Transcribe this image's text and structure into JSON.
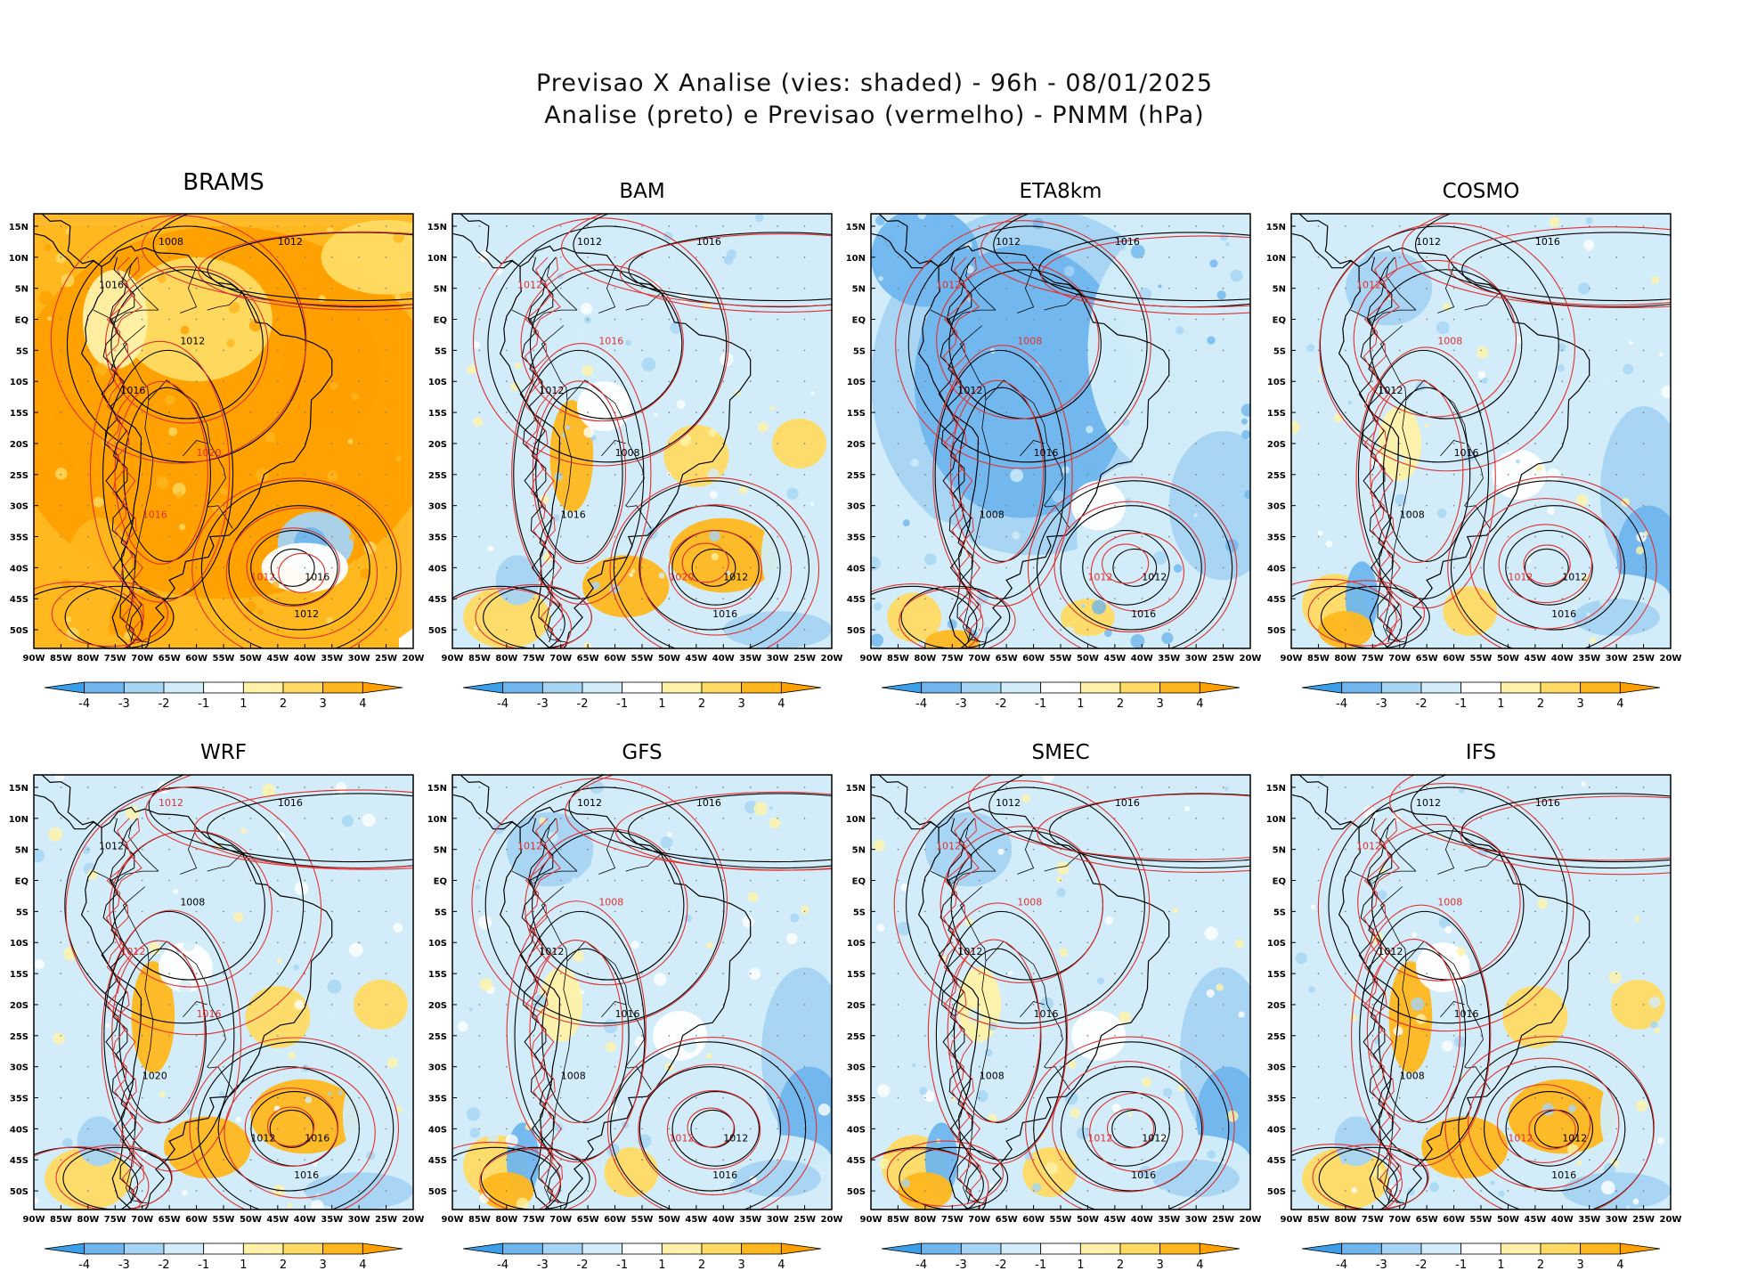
{
  "figure": {
    "title_line1": "Previsao X Analise (vies: shaded) - 96h - 08/01/2025",
    "title_line2": "Analise (preto) e Previsao (vermelho) - PNMM (hPa)"
  },
  "axes": {
    "lat_labels": [
      "15N",
      "10N",
      "5N",
      "EQ",
      "5S",
      "10S",
      "15S",
      "20S",
      "25S",
      "30S",
      "35S",
      "40S",
      "45S",
      "50S"
    ],
    "lon_labels": [
      "90W",
      "85W",
      "80W",
      "75W",
      "70W",
      "65W",
      "60W",
      "55W",
      "50W",
      "45W",
      "40W",
      "35W",
      "30W",
      "25W",
      "20W"
    ]
  },
  "colorbar": {
    "labels": [
      "-4",
      "-3",
      "-2",
      "-1",
      "1",
      "2",
      "3",
      "4"
    ],
    "colors": [
      "#3a9ee8",
      "#6fb6ee",
      "#a6d4f4",
      "#d2edf9",
      "#ffffff",
      "#fff2a8",
      "#ffdb63",
      "#ffb71e",
      "#ffa000"
    ]
  },
  "colors": {
    "analysis_contour": "#000000",
    "forecast_contour": "#e03030",
    "land_border": "#000000"
  },
  "panels": [
    {
      "id": "brams",
      "title": "BRAMS",
      "bias": "positive-strong",
      "labels": [
        {
          "t": "1008",
          "c": "black"
        },
        {
          "t": "1012",
          "c": "black"
        },
        {
          "t": "1016",
          "c": "black"
        },
        {
          "t": "1012",
          "c": "black"
        },
        {
          "t": "1016",
          "c": "black"
        },
        {
          "t": "1020",
          "c": "red"
        },
        {
          "t": "1016",
          "c": "red"
        },
        {
          "t": "1012",
          "c": "red"
        },
        {
          "t": "1016",
          "c": "black"
        },
        {
          "t": "1012",
          "c": "black"
        }
      ]
    },
    {
      "id": "bam",
      "title": "BAM",
      "bias": "mixed",
      "labels": [
        {
          "t": "1012",
          "c": "black"
        },
        {
          "t": "1016",
          "c": "black"
        },
        {
          "t": "1012",
          "c": "red"
        },
        {
          "t": "1016",
          "c": "red"
        },
        {
          "t": "1012",
          "c": "black"
        },
        {
          "t": "1008",
          "c": "black"
        },
        {
          "t": "1016",
          "c": "black"
        },
        {
          "t": "1020",
          "c": "red"
        },
        {
          "t": "1012",
          "c": "black"
        },
        {
          "t": "1016",
          "c": "black"
        }
      ]
    },
    {
      "id": "eta8km",
      "title": "ETA8km",
      "bias": "negative",
      "labels": [
        {
          "t": "1012",
          "c": "black"
        },
        {
          "t": "1016",
          "c": "black"
        },
        {
          "t": "1012",
          "c": "red"
        },
        {
          "t": "1008",
          "c": "red"
        },
        {
          "t": "1012",
          "c": "black"
        },
        {
          "t": "1016",
          "c": "black"
        },
        {
          "t": "1008",
          "c": "black"
        },
        {
          "t": "1012",
          "c": "red"
        },
        {
          "t": "1012",
          "c": "black"
        },
        {
          "t": "1016",
          "c": "black"
        }
      ]
    },
    {
      "id": "cosmo",
      "title": "COSMO",
      "bias": "mixed-negative",
      "labels": [
        {
          "t": "1012",
          "c": "black"
        },
        {
          "t": "1016",
          "c": "black"
        },
        {
          "t": "1012",
          "c": "red"
        },
        {
          "t": "1008",
          "c": "red"
        },
        {
          "t": "1012",
          "c": "black"
        },
        {
          "t": "1016",
          "c": "black"
        },
        {
          "t": "1008",
          "c": "black"
        },
        {
          "t": "1012",
          "c": "red"
        },
        {
          "t": "1012",
          "c": "black"
        },
        {
          "t": "1016",
          "c": "black"
        }
      ]
    },
    {
      "id": "wrf",
      "title": "WRF",
      "bias": "mixed",
      "labels": [
        {
          "t": "1012",
          "c": "red"
        },
        {
          "t": "1016",
          "c": "black"
        },
        {
          "t": "1012",
          "c": "black"
        },
        {
          "t": "1008",
          "c": "black"
        },
        {
          "t": "1012",
          "c": "red"
        },
        {
          "t": "1016",
          "c": "red"
        },
        {
          "t": "1020",
          "c": "black"
        },
        {
          "t": "1012",
          "c": "black"
        },
        {
          "t": "1016",
          "c": "black"
        },
        {
          "t": "1016",
          "c": "black"
        }
      ]
    },
    {
      "id": "gfs",
      "title": "GFS",
      "bias": "mixed-negative",
      "labels": [
        {
          "t": "1012",
          "c": "black"
        },
        {
          "t": "1016",
          "c": "black"
        },
        {
          "t": "1012",
          "c": "red"
        },
        {
          "t": "1008",
          "c": "red"
        },
        {
          "t": "1012",
          "c": "black"
        },
        {
          "t": "1016",
          "c": "black"
        },
        {
          "t": "1008",
          "c": "black"
        },
        {
          "t": "1012",
          "c": "red"
        },
        {
          "t": "1012",
          "c": "black"
        },
        {
          "t": "1016",
          "c": "black"
        }
      ]
    },
    {
      "id": "smec",
      "title": "SMEC",
      "bias": "mixed-negative",
      "labels": [
        {
          "t": "1012",
          "c": "black"
        },
        {
          "t": "1016",
          "c": "black"
        },
        {
          "t": "1012",
          "c": "red"
        },
        {
          "t": "1008",
          "c": "red"
        },
        {
          "t": "1012",
          "c": "black"
        },
        {
          "t": "1016",
          "c": "black"
        },
        {
          "t": "1008",
          "c": "black"
        },
        {
          "t": "1012",
          "c": "red"
        },
        {
          "t": "1012",
          "c": "black"
        },
        {
          "t": "1016",
          "c": "black"
        }
      ]
    },
    {
      "id": "ifs",
      "title": "IFS",
      "bias": "mixed",
      "labels": [
        {
          "t": "1012",
          "c": "black"
        },
        {
          "t": "1016",
          "c": "black"
        },
        {
          "t": "1012",
          "c": "red"
        },
        {
          "t": "1008",
          "c": "red"
        },
        {
          "t": "1012",
          "c": "black"
        },
        {
          "t": "1016",
          "c": "black"
        },
        {
          "t": "1008",
          "c": "black"
        },
        {
          "t": "1012",
          "c": "red"
        },
        {
          "t": "1012",
          "c": "black"
        },
        {
          "t": "1016",
          "c": "black"
        }
      ]
    }
  ]
}
